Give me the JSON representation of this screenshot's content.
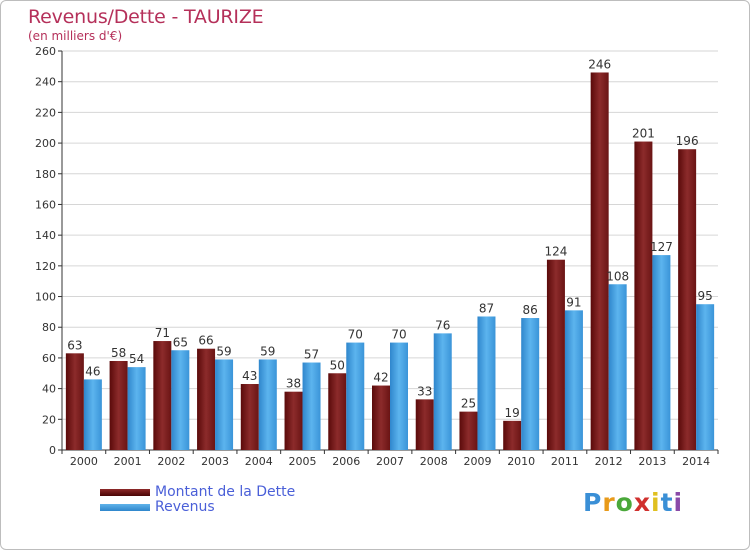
{
  "chart_data": {
    "type": "bar",
    "title": "Revenus/Dette - TAURIZE",
    "subtitle": "(en milliers d'€)",
    "categories": [
      "2000",
      "2001",
      "2002",
      "2003",
      "2004",
      "2005",
      "2006",
      "2007",
      "2008",
      "2009",
      "2010",
      "2011",
      "2012",
      "2013",
      "2014"
    ],
    "series": [
      {
        "name": "Montant de la Dette",
        "values": [
          63,
          58,
          71,
          66,
          43,
          38,
          50,
          42,
          33,
          25,
          19,
          124,
          246,
          201,
          196
        ]
      },
      {
        "name": "Revenus",
        "values": [
          46,
          54,
          65,
          59,
          59,
          57,
          70,
          70,
          76,
          87,
          86,
          91,
          108,
          127,
          95
        ]
      }
    ],
    "ylim": [
      0,
      260
    ],
    "yticks": [
      0,
      20,
      40,
      60,
      80,
      100,
      120,
      140,
      160,
      180,
      200,
      220,
      240,
      260
    ],
    "grid": true,
    "legend": "bottom-left",
    "colors": {
      "debt": "#7a1a1a",
      "revenue": "#3c9ce0",
      "title": "#b5305a",
      "legend_text": "#4a5fd8"
    }
  },
  "logo": {
    "letters": [
      "P",
      "r",
      "o",
      "x",
      "i",
      "t",
      "i"
    ],
    "colors": [
      "#3a8fd6",
      "#e89a1a",
      "#4aa83a",
      "#d0302e",
      "#e0c020",
      "#3a8fd6",
      "#8a4aa8"
    ]
  }
}
